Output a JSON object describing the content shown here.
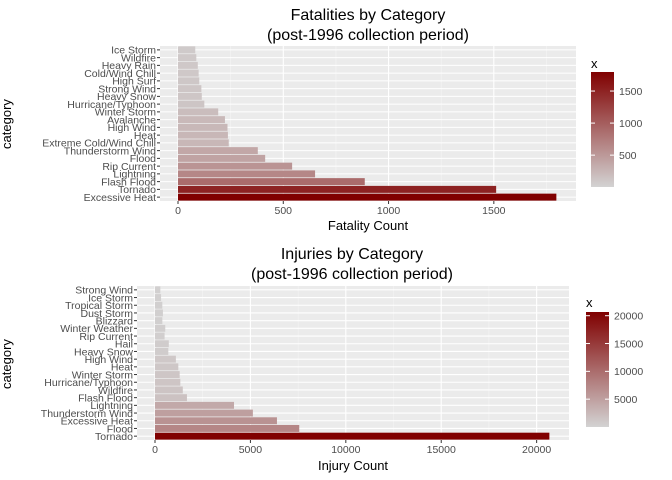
{
  "chart_data": [
    {
      "type": "bar",
      "orientation": "horizontal",
      "title_line1": "Fatalities by Category",
      "title_line2": "(post-1996 collection period)",
      "xlabel": "Fatality Count",
      "ylabel": "category",
      "xlim": [
        0,
        1800
      ],
      "x_ticks": [
        0,
        500,
        1000,
        1500
      ],
      "x_tick_labels": [
        "0",
        "500",
        "1000",
        "1500"
      ],
      "grid": true,
      "categories": [
        "Ice Storm",
        "Wildfire",
        "Heavy Rain",
        "Cold/Wind Chill",
        "High Surf",
        "Strong Wind",
        "Heavy Snow",
        "Hurricane/Typhoon",
        "Winter Storm",
        "Avalanche",
        "High Wind",
        "Heat",
        "Extreme Cold/Wind Chill",
        "Thunderstorm Wind",
        "Flood",
        "Rip Current",
        "Lightning",
        "Flash Flood",
        "Tornado",
        "Excessive Heat"
      ],
      "values": [
        82,
        87,
        94,
        98,
        101,
        111,
        113,
        125,
        191,
        223,
        235,
        237,
        241,
        379,
        414,
        542,
        651,
        887,
        1511,
        1797
      ],
      "legend": {
        "title": "x",
        "position": "right",
        "min": 3,
        "max": 1797,
        "ticks": [
          500,
          1000,
          1500
        ],
        "tick_labels": [
          "500",
          "1000",
          "1500"
        ],
        "low_color": "#d3d3d3",
        "high_color": "#800000"
      }
    },
    {
      "type": "bar",
      "orientation": "horizontal",
      "title_line1": "Injuries by Category",
      "title_line2": "(post-1996 collection period)",
      "xlabel": "Injury Count",
      "ylabel": "category",
      "xlim": [
        0,
        20700
      ],
      "x_ticks": [
        0,
        5000,
        10000,
        15000,
        20000
      ],
      "x_tick_labels": [
        "0",
        "5000",
        "10000",
        "15000",
        "20000"
      ],
      "grid": true,
      "categories": [
        "Strong Wind",
        "Ice Storm",
        "Tropical Storm",
        "Dust Storm",
        "Blizzard",
        "Winter Weather",
        "Rip Current",
        "Hail",
        "Heavy Snow",
        "High Wind",
        "Heat",
        "Winter Storm",
        "Hurricane/Typhoon",
        "Wildfire",
        "Flash Flood",
        "Lightning",
        "Thunderstorm Wind",
        "Excessive Heat",
        "Flood",
        "Tornado"
      ],
      "values": [
        280,
        318,
        383,
        415,
        385,
        538,
        503,
        723,
        698,
        1094,
        1222,
        1292,
        1328,
        1456,
        1674,
        4141,
        5129,
        6391,
        7559,
        20667
      ],
      "legend": {
        "title": "x",
        "position": "right",
        "min": 0,
        "max": 20667,
        "ticks": [
          5000,
          10000,
          15000,
          20000
        ],
        "tick_labels": [
          "5000",
          "10000",
          "15000",
          "20000"
        ],
        "low_color": "#d3d3d3",
        "high_color": "#800000"
      }
    }
  ]
}
